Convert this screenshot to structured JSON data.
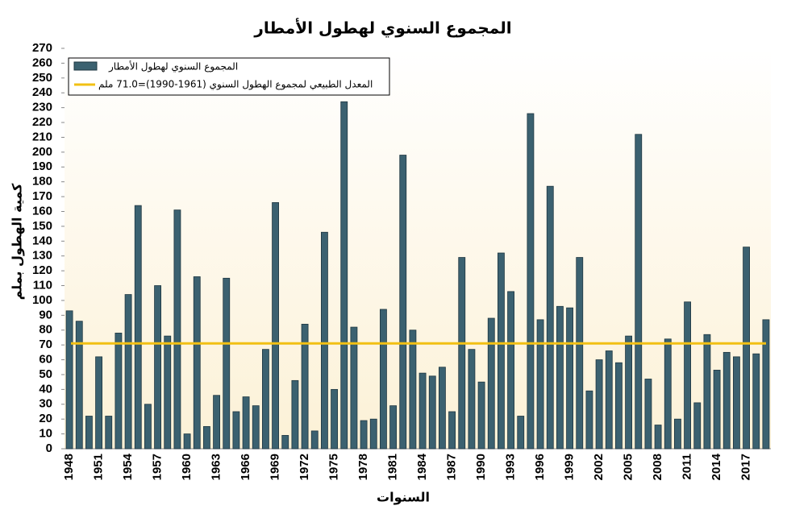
{
  "chart_data": {
    "type": "bar",
    "title": "المجموع السنوي لهطول الأمطار",
    "x_label": "السنوات",
    "y_label": "كمية الهطول بملم",
    "categories": [
      "1948",
      null,
      null,
      "1951",
      null,
      null,
      "1954",
      null,
      null,
      "1957",
      null,
      null,
      "1960",
      null,
      null,
      "1963",
      null,
      null,
      "1966",
      null,
      null,
      "1969",
      null,
      null,
      "1972",
      null,
      null,
      "1975",
      null,
      null,
      "1978",
      null,
      null,
      "1981",
      null,
      null,
      "1984",
      null,
      null,
      "1987",
      null,
      null,
      "1990",
      null,
      null,
      "1993",
      null,
      null,
      "1996",
      null,
      null,
      "1999",
      null,
      null,
      "2002",
      null,
      null,
      "2005",
      null,
      null,
      "2008",
      null,
      null,
      "2011",
      null,
      null,
      "2014",
      null,
      null,
      "2017",
      null,
      null
    ],
    "series": [
      {
        "name": "المجموع السنوي لهطول الأمطار",
        "color": "#3b6170",
        "values": [
          93,
          86,
          22,
          62,
          22,
          78,
          104,
          164,
          30,
          110,
          76,
          161,
          10,
          116,
          15,
          36,
          115,
          25,
          35,
          29,
          67,
          166,
          9,
          46,
          84,
          12,
          146,
          40,
          234,
          82,
          19,
          20,
          94,
          29,
          198,
          80,
          51,
          49,
          55,
          25,
          129,
          67,
          45,
          88,
          132,
          106,
          22,
          226,
          87,
          177,
          96,
          95,
          129,
          39,
          60,
          66,
          58,
          76,
          212,
          47,
          16,
          74,
          20,
          99,
          31,
          77,
          53,
          65,
          62,
          136,
          64,
          87
        ]
      }
    ],
    "reference_line": {
      "name": "المعدل الطبيعي لمجموع الهطول السنوي (1961-1990)=71.0 ملم",
      "value": 71,
      "color": "#f2c014"
    },
    "ylim": [
      0,
      270
    ],
    "yticks": [
      0,
      10,
      20,
      30,
      40,
      50,
      60,
      70,
      80,
      90,
      100,
      110,
      120,
      130,
      140,
      150,
      160,
      170,
      180,
      190,
      200,
      210,
      220,
      230,
      240,
      250,
      260,
      270
    ],
    "legend": "top-left"
  }
}
